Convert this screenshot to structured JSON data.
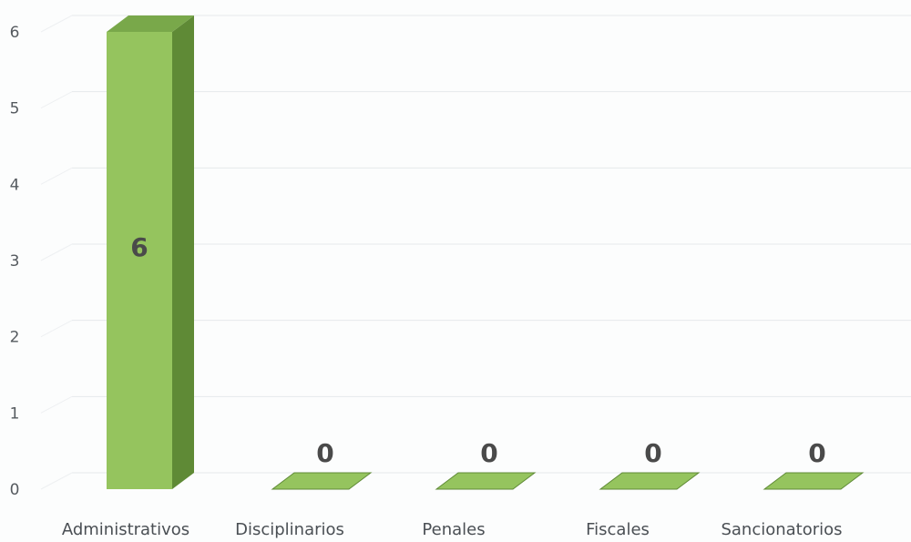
{
  "chart_data": {
    "type": "bar",
    "style": "3d-column",
    "categories": [
      "Administrativos",
      "Disciplinarios",
      "Penales",
      "Fiscales",
      "Sancionatorios"
    ],
    "series": [
      {
        "values": [
          6,
          0,
          0,
          0,
          0
        ]
      }
    ],
    "data_labels": [
      "6",
      "0",
      "0",
      "0",
      "0"
    ],
    "y_ticks": [
      "0",
      "1",
      "2",
      "3",
      "4",
      "5",
      "6"
    ],
    "ylim": [
      0,
      6
    ],
    "grid": true,
    "legend": "none",
    "colors": {
      "bar_front": "#95c45e",
      "bar_side": "#5f8a36",
      "bar_top": "#79a84a",
      "gridline": "#e6e9ec",
      "tick_text": "#555a5f",
      "data_label": "#4a4a4a"
    }
  }
}
